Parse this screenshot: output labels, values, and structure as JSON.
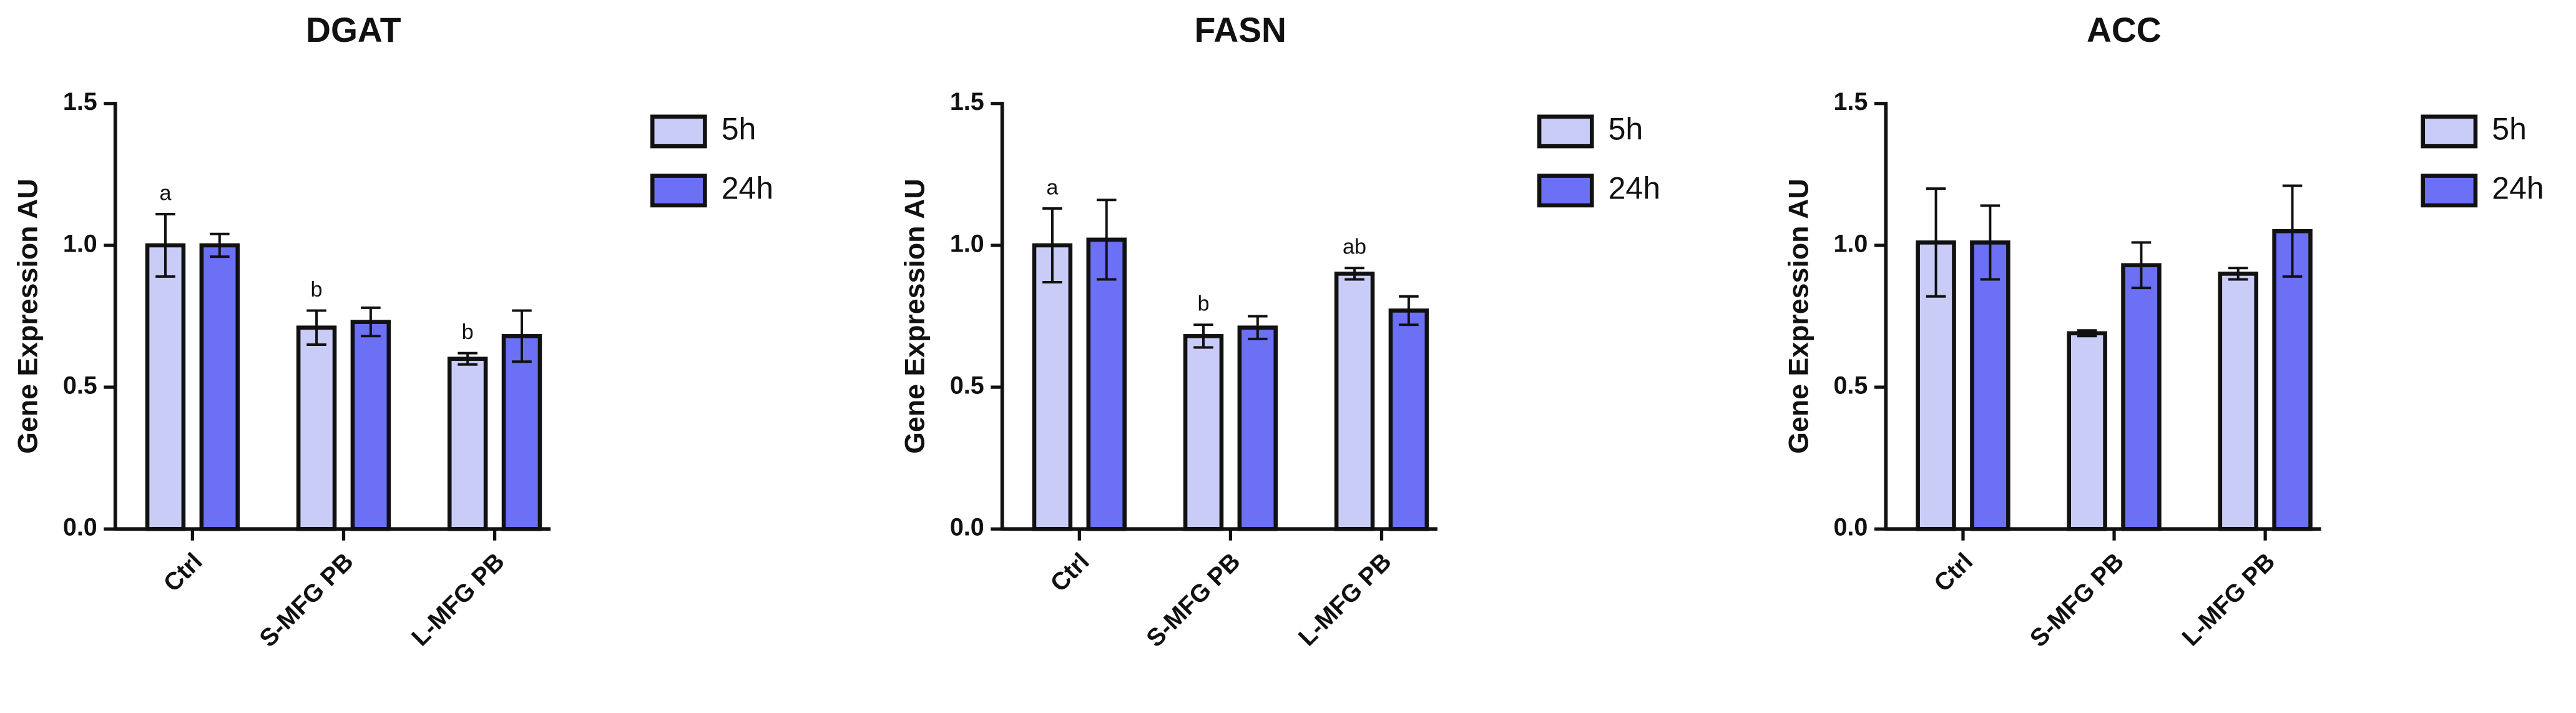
{
  "chart_data": [
    {
      "type": "bar",
      "title": "DGAT",
      "y_label": "Gene Expression AU",
      "categories": [
        "Ctrl",
        "S-MFG PB",
        "L-MFG PB"
      ],
      "series": [
        {
          "name": "5h",
          "color": "#c9ccf6",
          "values": [
            1.0,
            0.71,
            0.6
          ],
          "errors": [
            0.11,
            0.06,
            0.02
          ],
          "annotations": [
            "a",
            "b",
            "b"
          ]
        },
        {
          "name": "24h",
          "color": "#6b70f4",
          "values": [
            1.0,
            0.73,
            0.68
          ],
          "errors": [
            0.04,
            0.05,
            0.09
          ]
        }
      ],
      "ylim": [
        0,
        1.5
      ],
      "yticks": [
        {
          "value": 0,
          "label": "0.0"
        },
        {
          "value": 0.5,
          "label": "0.5"
        },
        {
          "value": 1,
          "label": "1.0"
        },
        {
          "value": 1.5,
          "label": "1.5"
        }
      ]
    },
    {
      "type": "bar",
      "title": "FASN",
      "y_label": "Gene Expression AU",
      "categories": [
        "Ctrl",
        "S-MFG PB",
        "L-MFG PB"
      ],
      "series": [
        {
          "name": "5h",
          "color": "#c9ccf6",
          "values": [
            1.0,
            0.68,
            0.9
          ],
          "errors": [
            0.13,
            0.04,
            0.02
          ],
          "annotations": [
            "a",
            "b",
            "ab"
          ]
        },
        {
          "name": "24h",
          "color": "#6b70f4",
          "values": [
            1.02,
            0.71,
            0.77
          ],
          "errors": [
            0.14,
            0.04,
            0.05
          ]
        }
      ],
      "ylim": [
        0,
        1.5
      ],
      "yticks": [
        {
          "value": 0,
          "label": "0.0"
        },
        {
          "value": 0.5,
          "label": "0.5"
        },
        {
          "value": 1,
          "label": "1.0"
        },
        {
          "value": 1.5,
          "label": "1.5"
        }
      ]
    },
    {
      "type": "bar",
      "title": "ACC",
      "y_label": "Gene Expression AU",
      "categories": [
        "Ctrl",
        "S-MFG PB",
        "L-MFG PB"
      ],
      "series": [
        {
          "name": "5h",
          "color": "#c9ccf6",
          "values": [
            1.01,
            0.69,
            0.9
          ],
          "errors": [
            0.19,
            0.01,
            0.02
          ]
        },
        {
          "name": "24h",
          "color": "#6b70f4",
          "values": [
            1.01,
            0.93,
            1.05
          ],
          "errors": [
            0.13,
            0.08,
            0.16
          ]
        }
      ],
      "ylim": [
        0,
        1.5
      ],
      "yticks": [
        {
          "value": 0,
          "label": "0.0"
        },
        {
          "value": 0.5,
          "label": "0.5"
        },
        {
          "value": 1,
          "label": "1.0"
        },
        {
          "value": 1.5,
          "label": "1.5"
        }
      ]
    }
  ]
}
